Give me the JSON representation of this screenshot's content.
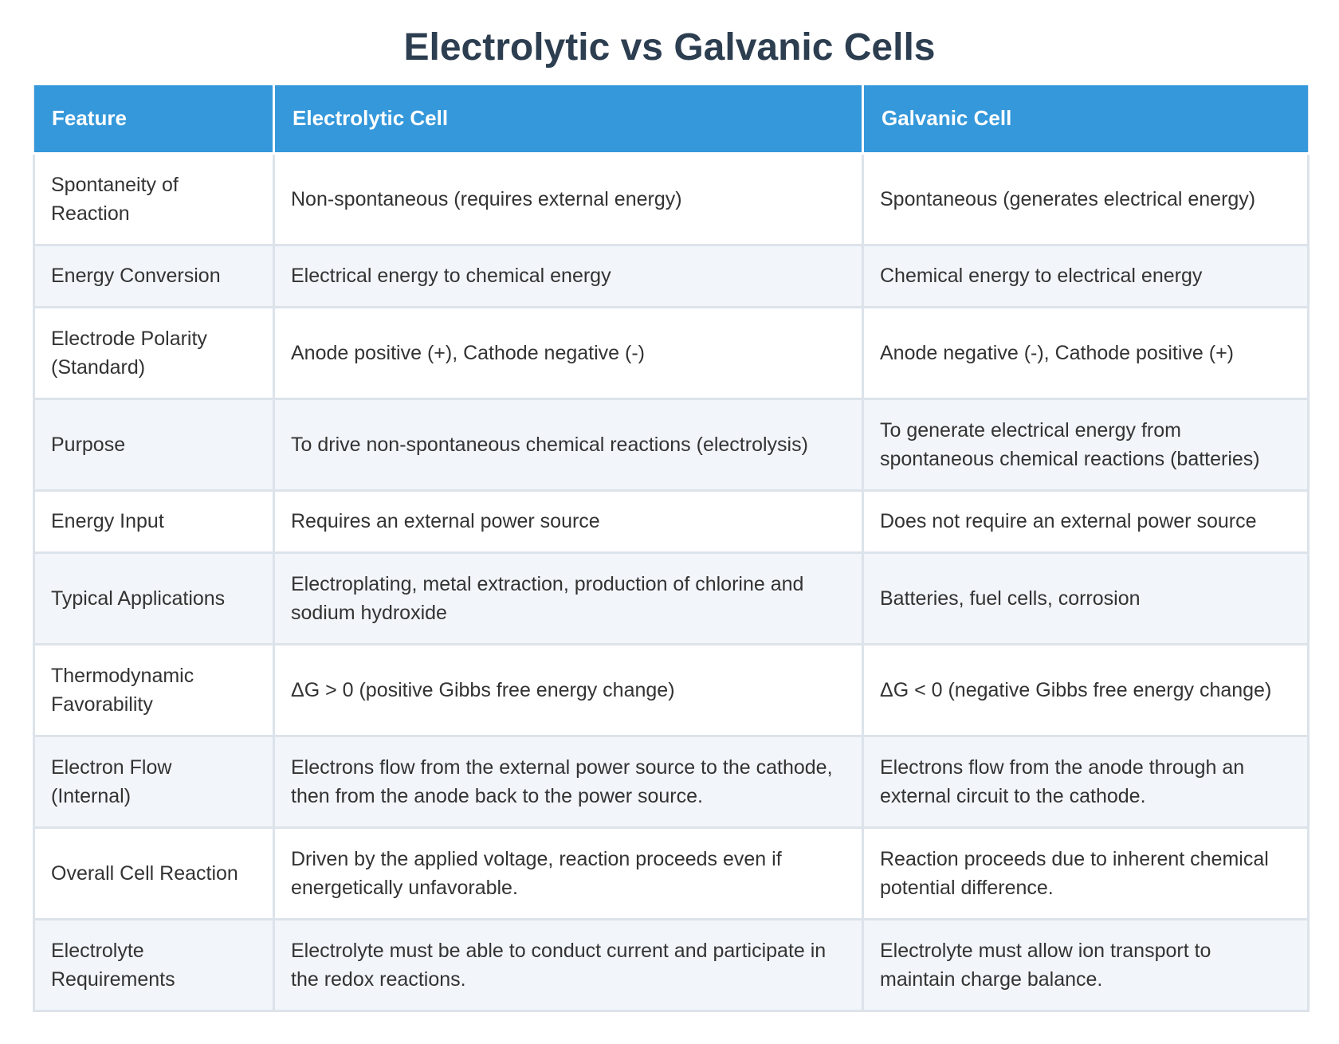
{
  "title": "Electrolytic vs Galvanic Cells",
  "colors": {
    "header_bg": "#3498db",
    "header_text": "#ffffff",
    "title_text": "#2c3e50",
    "row_alt_bg": "#f2f5f9",
    "border": "#dde3ea"
  },
  "table": {
    "headers": [
      "Feature",
      "Electrolytic Cell",
      "Galvanic Cell"
    ],
    "rows": [
      [
        "Spontaneity of Reaction",
        "Non-spontaneous (requires external energy)",
        "Spontaneous (generates electrical energy)"
      ],
      [
        "Energy Conversion",
        "Electrical energy to chemical energy",
        "Chemical energy to electrical energy"
      ],
      [
        "Electrode Polarity (Standard)",
        "Anode positive (+), Cathode negative (-)",
        "Anode negative (-), Cathode positive (+)"
      ],
      [
        "Purpose",
        "To drive non-spontaneous chemical reactions (electrolysis)",
        "To generate electrical energy from spontaneous chemical reactions (batteries)"
      ],
      [
        "Energy Input",
        "Requires an external power source",
        "Does not require an external power source"
      ],
      [
        "Typical Applications",
        "Electroplating, metal extraction, production of chlorine and sodium hydroxide",
        "Batteries, fuel cells, corrosion"
      ],
      [
        "Thermodynamic Favorability",
        "ΔG > 0 (positive Gibbs free energy change)",
        "ΔG < 0 (negative Gibbs free energy change)"
      ],
      [
        "Electron Flow (Internal)",
        "Electrons flow from the external power source to the cathode, then from the anode back to the power source.",
        "Electrons flow from the anode through an external circuit to the cathode."
      ],
      [
        "Overall Cell Reaction",
        "Driven by the applied voltage, reaction proceeds even if energetically unfavorable.",
        "Reaction proceeds due to inherent chemical potential difference."
      ],
      [
        "Electrolyte Requirements",
        "Electrolyte must be able to conduct current and participate in the redox reactions.",
        "Electrolyte must allow ion transport to maintain charge balance."
      ]
    ]
  }
}
